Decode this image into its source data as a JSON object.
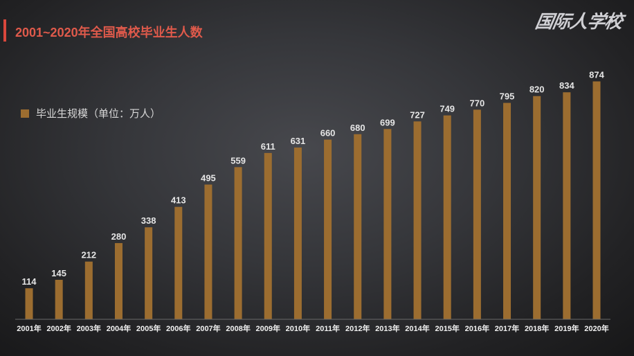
{
  "brand": {
    "logo_text": "国际人学校"
  },
  "colors": {
    "title": "#e05a4b",
    "title_marker": "#d9473c",
    "bar": "#9c6d30",
    "axis": "#6a6a6a",
    "value_label": "#e6e6e6",
    "tick_label": "#f2f2f2",
    "legend_text": "#d8d8d8"
  },
  "chart_data": {
    "type": "bar",
    "title": "2001~2020年全国高校毕业生人数",
    "categories": [
      "2001年",
      "2002年",
      "2003年",
      "2004年",
      "2005年",
      "2006年",
      "2007年",
      "2008年",
      "2009年",
      "2010年",
      "2011年",
      "2012年",
      "2013年",
      "2014年",
      "2015年",
      "2016年",
      "2017年",
      "2018年",
      "2019年",
      "2020年"
    ],
    "series": [
      {
        "name": "毕业生规模（单位：万人）",
        "values": [
          114,
          145,
          212,
          280,
          338,
          413,
          495,
          559,
          611,
          631,
          660,
          680,
          699,
          727,
          749,
          770,
          795,
          820,
          834,
          874
        ]
      }
    ],
    "xlabel": "",
    "ylabel": "",
    "ylim": [
      0,
      1000
    ],
    "grid": false,
    "legend": "top-left",
    "data_labels": true
  }
}
